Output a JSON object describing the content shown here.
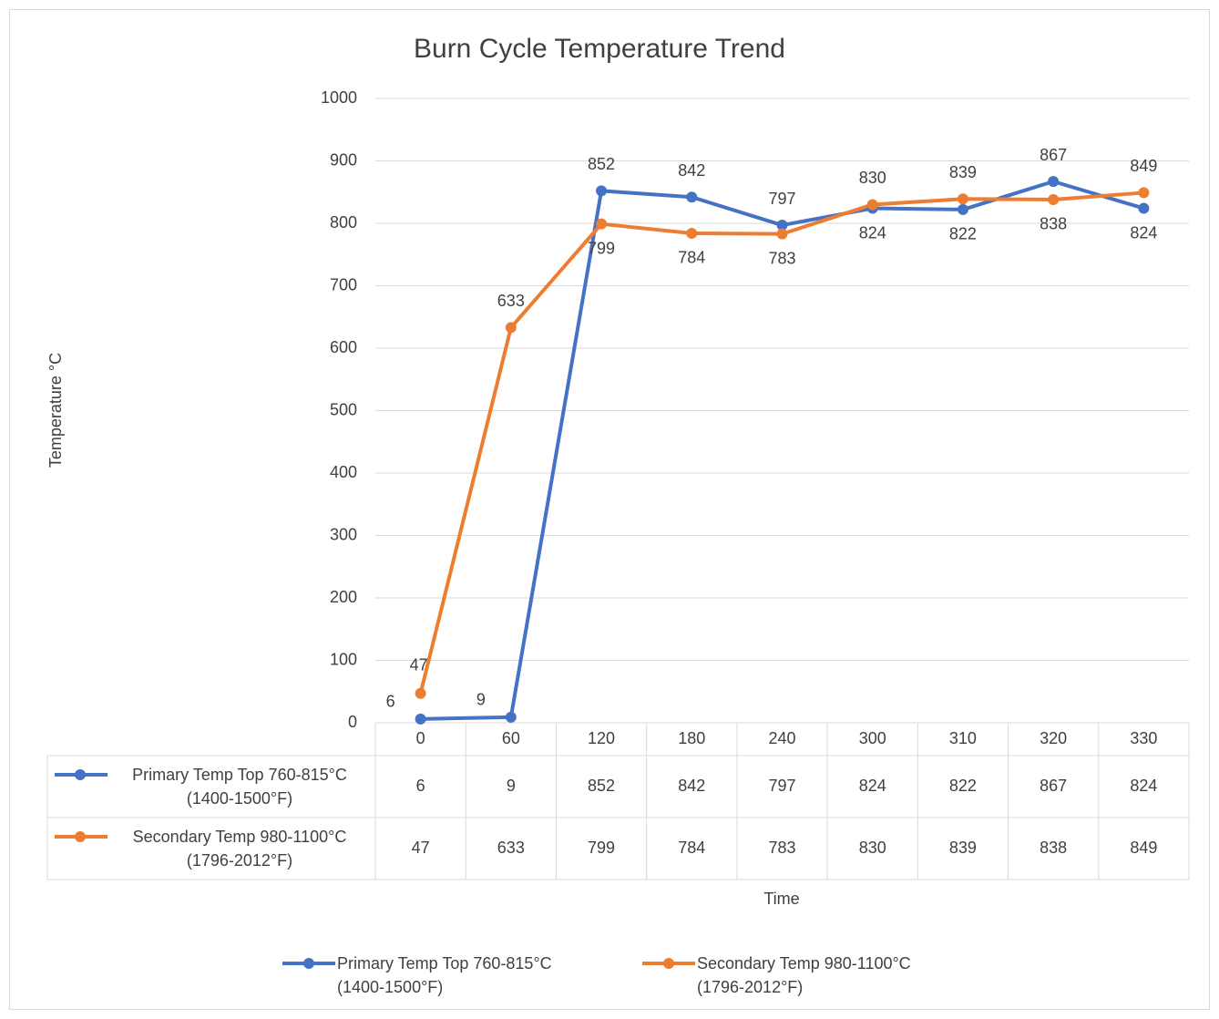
{
  "chart_data": {
    "type": "line",
    "title": "Burn Cycle Temperature Trend",
    "x_label": "Time",
    "y_label": "Temperature °C",
    "categories": [
      "0",
      "60",
      "120",
      "180",
      "240",
      "300",
      "310",
      "320",
      "330"
    ],
    "series": [
      {
        "name": "Primary Temp Top 760-815°C (1400-1500°F)",
        "color": "#4472c4",
        "values": [
          6,
          9,
          852,
          842,
          797,
          824,
          822,
          867,
          824
        ]
      },
      {
        "name": "Secondary Temp 980-1100°C (1796-2012°F)",
        "color": "#ed7d31",
        "values": [
          47,
          633,
          799,
          784,
          783,
          830,
          839,
          838,
          849
        ]
      }
    ],
    "ylim": [
      0,
      1000
    ],
    "yticks": [
      0,
      100,
      200,
      300,
      400,
      500,
      600,
      700,
      800,
      900,
      1000
    ],
    "grid": true,
    "legend": "bottom",
    "data_table": true
  }
}
